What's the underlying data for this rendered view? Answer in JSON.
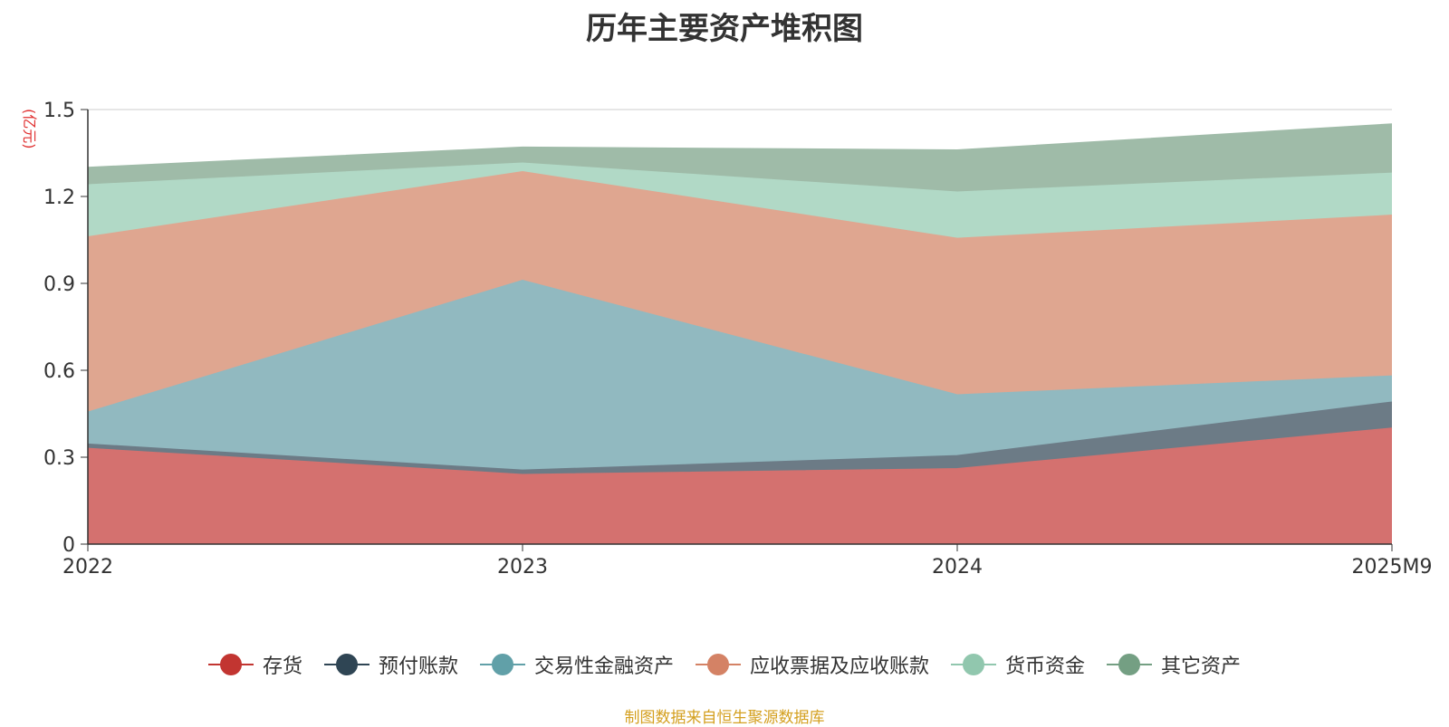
{
  "chart_data": {
    "type": "area",
    "title": "历年主要资产堆积图",
    "unit_label": "(亿元)",
    "categories": [
      "2022",
      "2023",
      "2024",
      "2025M9"
    ],
    "ylim": [
      0,
      1.5
    ],
    "yticks": [
      0,
      0.3,
      0.6,
      0.9,
      1.2,
      1.5
    ],
    "ytick_labels": [
      "0",
      "0.3",
      "0.6",
      "0.9",
      "1.2",
      "1.5"
    ],
    "stacked": true,
    "series": [
      {
        "name": "存货",
        "color": "#c23531",
        "fill": "#d4716f",
        "values": [
          0.33,
          0.24,
          0.26,
          0.4
        ]
      },
      {
        "name": "预付账款",
        "color": "#2f4554",
        "fill": "#6c7b86",
        "values": [
          0.015,
          0.015,
          0.045,
          0.09
        ]
      },
      {
        "name": "交易性金融资产",
        "color": "#61a0a8",
        "fill": "#91b9c0",
        "values": [
          0.11,
          0.655,
          0.21,
          0.09
        ]
      },
      {
        "name": "应收票据及应收账款",
        "color": "#d48265",
        "fill": "#dfa690",
        "values": [
          0.605,
          0.375,
          0.54,
          0.555
        ]
      },
      {
        "name": "货币资金",
        "color": "#91c7ae",
        "fill": "#b1d9c6",
        "values": [
          0.18,
          0.03,
          0.16,
          0.145
        ]
      },
      {
        "name": "其它资产",
        "color": "#749f83",
        "fill": "#9fbba8",
        "values": [
          0.06,
          0.055,
          0.145,
          0.17
        ]
      }
    ]
  },
  "footer": {
    "source": "制图数据来自恒生聚源数据库"
  }
}
